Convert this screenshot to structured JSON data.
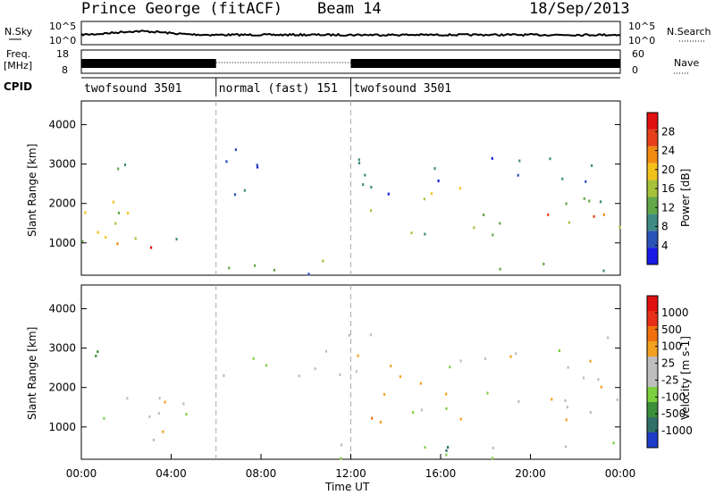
{
  "header": {
    "station": "Prince George (fitACF)",
    "beam": "Beam 14",
    "date": "18/Sep/2013"
  },
  "status_panels": {
    "nsky_label": "N.Sky",
    "nsearch_label": "N.Search",
    "freq_label_line1": "Freq.",
    "freq_label_line2": "[MHz]",
    "nave_label": "Nave",
    "cpid_label": "CPID",
    "nsky_ticks": [
      "10^5",
      "10^0"
    ],
    "nsearch_ticks": [
      "10^5",
      "10^0"
    ],
    "freq_ticks": [
      "18",
      "8"
    ],
    "nave_ticks": [
      "60",
      "0"
    ],
    "cpid_segments": [
      {
        "label": "twofsound 3501",
        "start_hour": 0,
        "end_hour": 6
      },
      {
        "label": "normal (fast) 151",
        "start_hour": 6,
        "end_hour": 12
      },
      {
        "label": "twofsound 3501",
        "start_hour": 12,
        "end_hour": 24
      }
    ]
  },
  "chart_data": [
    {
      "type": "heatmap",
      "panel": "power",
      "xlabel": "",
      "ylabel": "Slant Range [km]",
      "xlim": [
        0,
        24
      ],
      "ylim": [
        180,
        4600
      ],
      "yticks": [
        1000,
        2000,
        3000,
        4000
      ],
      "colorbar": {
        "label": "Power [dB]",
        "ticks": [
          "4",
          "8",
          "12",
          "16",
          "20",
          "24",
          "28"
        ],
        "range": [
          0,
          30
        ],
        "colors": [
          "#1a1ae6",
          "#2a55b8",
          "#3f8b82",
          "#62a84a",
          "#a6c23a",
          "#f2c21a",
          "#f08a10",
          "#e8401a",
          "#e01010"
        ]
      },
      "scatter_regions": [
        {
          "x": [
            0.0,
            6.0
          ],
          "y": [
            900,
            2200
          ],
          "level": 0.45
        },
        {
          "x": [
            0.0,
            2.5
          ],
          "y": [
            1000,
            1700
          ],
          "level": 0.65
        },
        {
          "x": [
            2.5,
            4.2
          ],
          "y": [
            700,
            1000
          ],
          "level": 0.75
        },
        {
          "x": [
            0.5,
            2.5
          ],
          "y": [
            2500,
            3200
          ],
          "level": 0.25
        },
        {
          "x": [
            6.0,
            14.0
          ],
          "y": [
            2200,
            3500
          ],
          "level": 0.15
        },
        {
          "x": [
            6.0,
            24.0
          ],
          "y": [
            220,
            600
          ],
          "level": 0.35
        },
        {
          "x": [
            12.8,
            14.8
          ],
          "y": [
            450,
            650
          ],
          "level": 0.85
        },
        {
          "x": [
            12.0,
            17.0
          ],
          "y": [
            1800,
            2600
          ],
          "level": 0.45
        },
        {
          "x": [
            14.0,
            24.0
          ],
          "y": [
            1200,
            2300
          ],
          "level": 0.5
        },
        {
          "x": [
            17.5,
            24.0
          ],
          "y": [
            1400,
            1800
          ],
          "level": 0.7
        },
        {
          "x": [
            15.5,
            24.0
          ],
          "y": [
            2400,
            3300
          ],
          "level": 0.2
        },
        {
          "x": [
            13.2,
            14.0
          ],
          "y": [
            700,
            1200
          ],
          "level": 0.6
        }
      ],
      "vertical_markers": [
        6,
        12
      ]
    },
    {
      "type": "heatmap",
      "panel": "velocity",
      "xlabel": "Time UT",
      "ylabel": "Slant Range [km]",
      "xlim": [
        0,
        24
      ],
      "ylim": [
        180,
        4600
      ],
      "xticks": [
        "00:00",
        "04:00",
        "08:00",
        "12:00",
        "16:00",
        "20:00",
        "00:00"
      ],
      "yticks": [
        1000,
        2000,
        3000,
        4000
      ],
      "colorbar": {
        "label": "Velocity [m s-1]",
        "ticks": [
          "1000",
          "500",
          "100",
          "25",
          "-25",
          "-100",
          "-500",
          "-1000"
        ],
        "colors": [
          "#1e3cc8",
          "#2f6f6a",
          "#3c8f3a",
          "#7cd040",
          "#bebebe",
          "#bebebe",
          "#f2a020",
          "#f07010",
          "#e83018",
          "#e01010"
        ]
      },
      "scatter_regions": [
        {
          "x": [
            0.0,
            6.0
          ],
          "y": [
            1000,
            2200
          ],
          "level": 0.45
        },
        {
          "x": [
            2.5,
            4.2
          ],
          "y": [
            600,
            1400
          ],
          "level": 0.72
        },
        {
          "x": [
            0.5,
            2.5
          ],
          "y": [
            2500,
            3200
          ],
          "level": 0.3
        },
        {
          "x": [
            6.0,
            14.0
          ],
          "y": [
            2200,
            3500
          ],
          "level": 0.48
        },
        {
          "x": [
            6.0,
            24.0
          ],
          "y": [
            220,
            700
          ],
          "level": 0.3
        },
        {
          "x": [
            12.8,
            14.8
          ],
          "y": [
            800,
            1600
          ],
          "level": 0.7
        },
        {
          "x": [
            12.0,
            17.0
          ],
          "y": [
            1800,
            2600
          ],
          "level": 0.68
        },
        {
          "x": [
            14.0,
            24.0
          ],
          "y": [
            1200,
            2300
          ],
          "level": 0.5
        },
        {
          "x": [
            17.5,
            24.0
          ],
          "y": [
            1400,
            1800
          ],
          "level": 0.62
        },
        {
          "x": [
            15.5,
            24.0
          ],
          "y": [
            2400,
            3300
          ],
          "level": 0.45
        }
      ],
      "vertical_markers": [
        6,
        12
      ]
    }
  ]
}
